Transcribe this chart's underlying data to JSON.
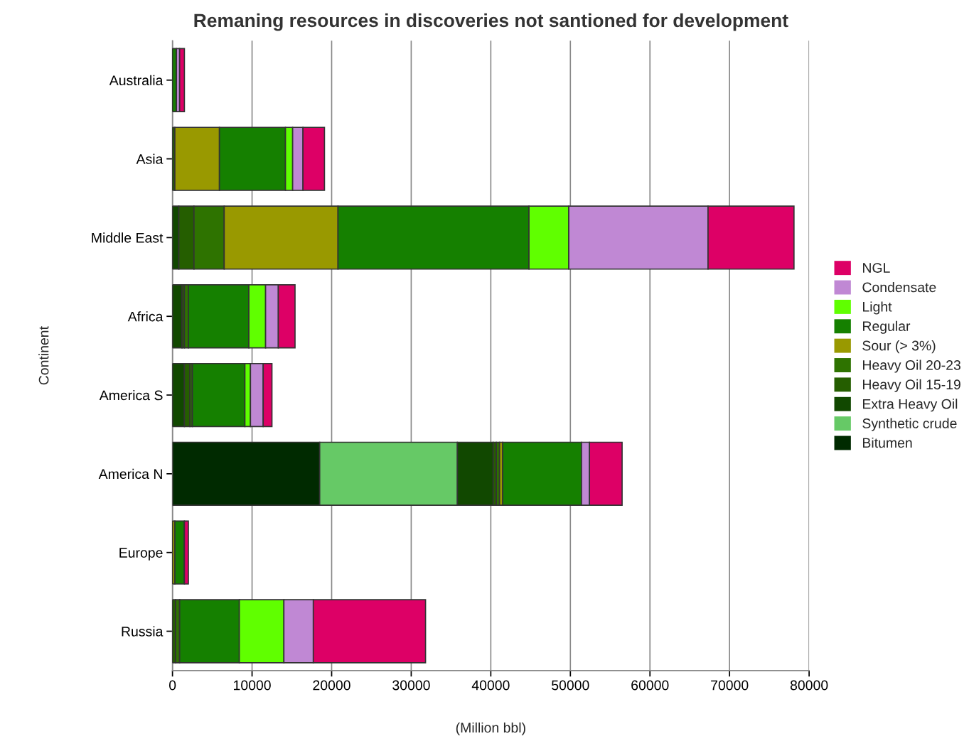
{
  "chart_data": {
    "type": "bar",
    "orientation": "horizontal",
    "stacked": true,
    "title": "Remaning resources in discoveries not santioned for development",
    "xlabel": "(Million bbl)",
    "ylabel": "Continent",
    "categories": [
      "Australia",
      "Asia",
      "Middle East",
      "Africa",
      "America S",
      "America N",
      "Europe",
      "Russia"
    ],
    "series": [
      {
        "name": "Bitumen",
        "color": "#002a00",
        "values": [
          null,
          null,
          null,
          null,
          null,
          18500,
          null,
          null
        ]
      },
      {
        "name": "Synthetic crude",
        "color": "#66c966",
        "values": [
          null,
          null,
          null,
          null,
          null,
          17300,
          null,
          null
        ]
      },
      {
        "name": "Extra Heavy Oil",
        "color": "#114800",
        "values": [
          null,
          null,
          800,
          1200,
          1500,
          4500,
          null,
          null
        ]
      },
      {
        "name": "Heavy Oil 15-19",
        "color": "#255e00",
        "values": [
          null,
          300,
          1900,
          300,
          700,
          400,
          null,
          400
        ]
      },
      {
        "name": "Heavy Oil 20-23",
        "color": "#2e7300",
        "values": [
          null,
          null,
          3800,
          500,
          300,
          400,
          null,
          500
        ]
      },
      {
        "name": "Sour (> 3%)",
        "color": "#999900",
        "values": [
          null,
          5600,
          14300,
          null,
          null,
          400,
          300,
          null
        ]
      },
      {
        "name": "Regular",
        "color": "#158000",
        "values": [
          500,
          8300,
          24000,
          7600,
          6600,
          9900,
          1200,
          7500
        ]
      },
      {
        "name": "Light",
        "color": "#60ff00",
        "values": [
          null,
          900,
          5000,
          2100,
          700,
          null,
          null,
          5600
        ]
      },
      {
        "name": "Condensate",
        "color": "#c088d4",
        "values": [
          400,
          1300,
          17500,
          1600,
          1600,
          1000,
          null,
          3700
        ]
      },
      {
        "name": "NGL",
        "color": "#dd0066",
        "values": [
          600,
          2700,
          10800,
          2100,
          1100,
          4100,
          500,
          14100
        ]
      }
    ],
    "xlim": [
      0,
      80000
    ],
    "xticks": [
      0,
      10000,
      20000,
      30000,
      40000,
      50000,
      60000,
      70000,
      80000
    ],
    "grid": "x",
    "legend": "right"
  }
}
